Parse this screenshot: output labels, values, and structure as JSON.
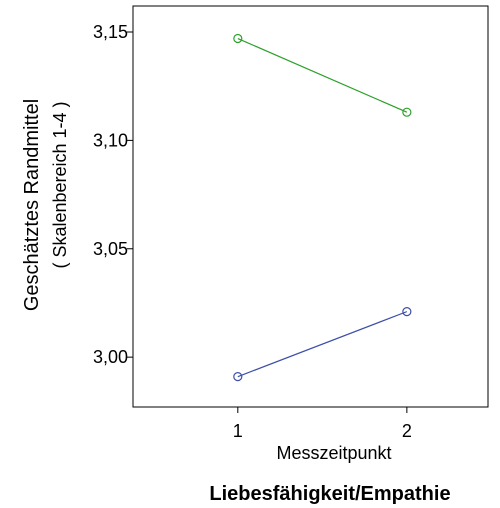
{
  "chart_data": {
    "type": "line",
    "title": "Liebesfähigkeit/Empathie",
    "xlabel": "Messzeitpunkt",
    "ylabel": "Geschätztes Randmittel",
    "ylabel_sub": "( Skalenbereich 1-4 )",
    "x": [
      1,
      2
    ],
    "x_tick_labels": [
      "1",
      "2"
    ],
    "y_ticks": [
      3.0,
      3.05,
      3.1,
      3.15
    ],
    "y_tick_labels": [
      "3,00",
      "3,05",
      "3,10",
      "3,15"
    ],
    "ylim": [
      2.977,
      3.162
    ],
    "xlim": [
      0.38,
      2.48
    ],
    "grid": false,
    "series": [
      {
        "color": "#2ca02c",
        "values": [
          3.147,
          3.113
        ]
      },
      {
        "color": "#3d4fa6",
        "values": [
          2.991,
          3.021
        ]
      }
    ]
  }
}
